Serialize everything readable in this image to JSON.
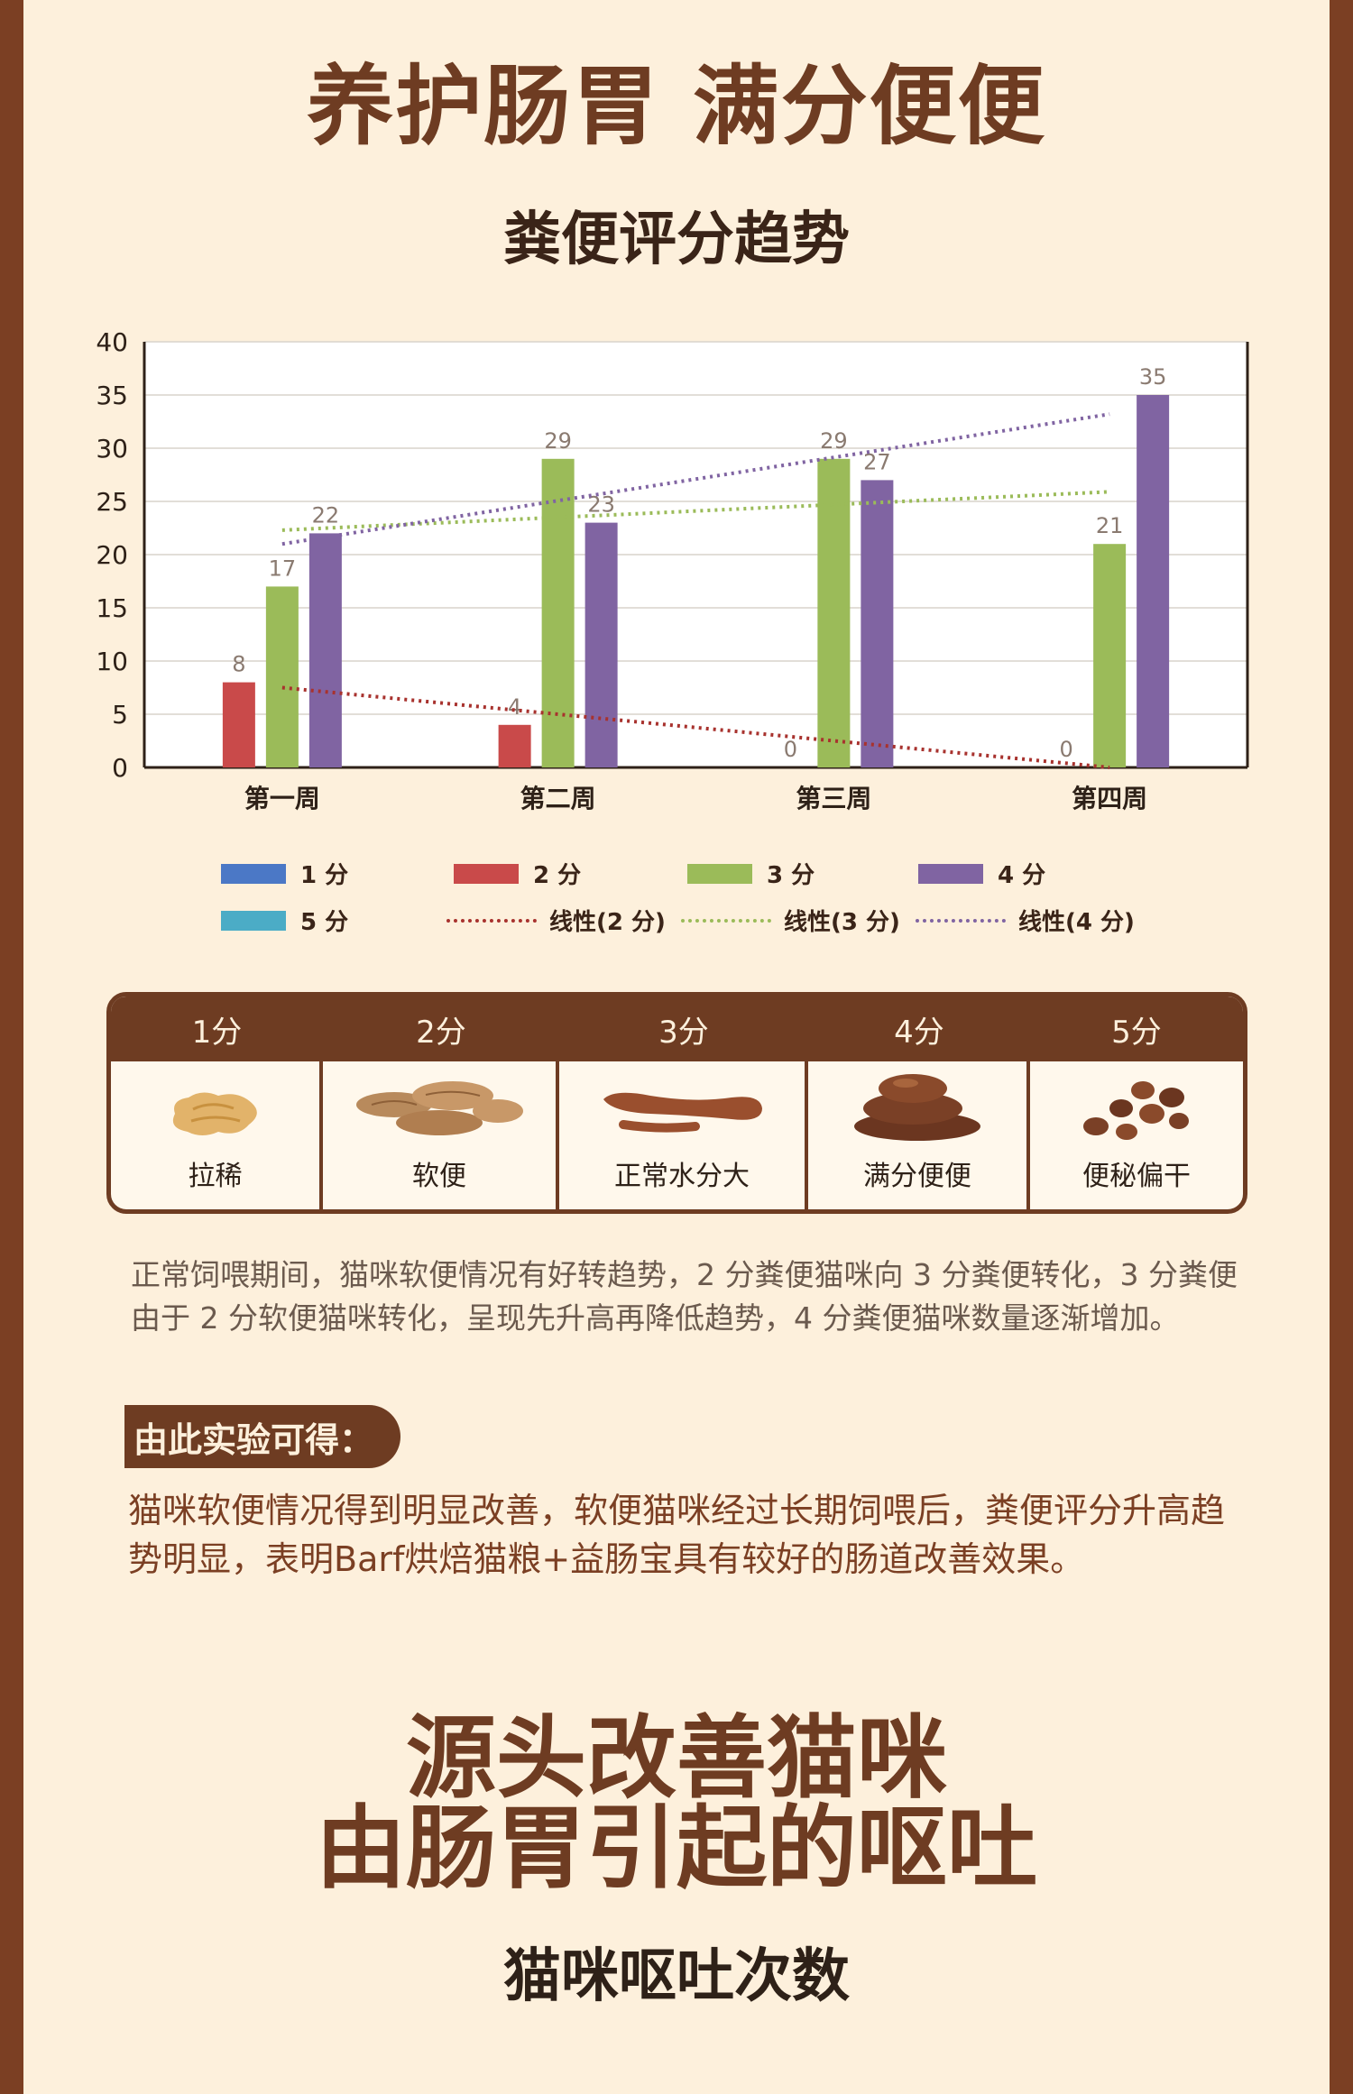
{
  "page_title": "养护肠胃 满分便便",
  "chart_title": "粪便评分趋势",
  "chart_data": {
    "type": "bar",
    "title": "粪便评分趋势",
    "categories": [
      "第一周",
      "第二周",
      "第三周",
      "第四周"
    ],
    "ylim": [
      0,
      40
    ],
    "yticks": [
      0,
      5,
      10,
      15,
      20,
      25,
      30,
      35,
      40
    ],
    "grid": true,
    "legend_position": "bottom",
    "series": [
      {
        "name": "1分",
        "color": "#4b78c6",
        "values": [
          null,
          null,
          null,
          null
        ]
      },
      {
        "name": "2分",
        "color": "#c94a4a",
        "values": [
          8,
          4,
          0,
          0
        ]
      },
      {
        "name": "3分",
        "color": "#9bbb59",
        "values": [
          17,
          29,
          29,
          21
        ]
      },
      {
        "name": "4分",
        "color": "#8064a2",
        "values": [
          22,
          23,
          27,
          35
        ]
      },
      {
        "name": "5分",
        "color": "#4bacc6",
        "values": [
          null,
          null,
          null,
          null
        ]
      }
    ],
    "trendlines": [
      {
        "name": "线性(2 分)",
        "color": "#a8322e",
        "start": 7.5,
        "end": 0
      },
      {
        "name": "线性(3 分)",
        "color": "#9bbb59",
        "start": 22.3,
        "end": 25.9
      },
      {
        "name": "线性(4 分)",
        "color": "#8064a2",
        "start": 21,
        "end": 33.2
      }
    ]
  },
  "legend_labels": {
    "s1": "1 分",
    "s2": "2 分",
    "s3": "3 分",
    "s4": "4 分",
    "s5": "5 分",
    "t2": "线性(2 分)",
    "t3": "线性(3 分)",
    "t4": "线性(4 分)"
  },
  "score_table": {
    "headers": [
      "1分",
      "2分",
      "3分",
      "4分",
      "5分"
    ],
    "labels": [
      "拉稀",
      "软便",
      "正常水分大",
      "满分便便",
      "便秘偏干"
    ]
  },
  "paragraph1": "正常饲喂期间，猫咪软便情况有好转趋势，2 分粪便猫咪向 3 分粪便转化，3 分粪便由于 2 分软便猫咪转化，呈现先升高再降低趋势，4 分粪便猫咪数量逐渐增加。",
  "conclusion_tag": "由此实验可得：",
  "paragraph2": "猫咪软便情况得到明显改善，软便猫咪经过长期饲喂后，粪便评分升高趋势明显，表明Barf烘焙猫粮+益肠宝具有较好的肠道改善效果。",
  "section2_line1": "源头改善猫咪",
  "section2_line2": "由肠胃引起的呕吐",
  "section2_subtitle": "猫咪呕吐次数"
}
